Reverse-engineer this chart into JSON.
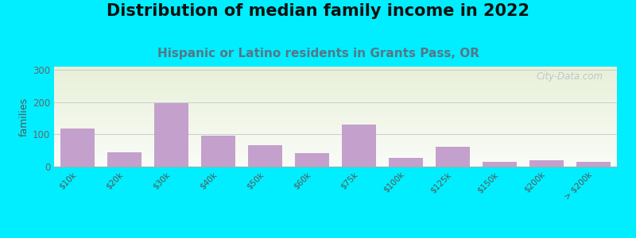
{
  "title": "Distribution of median family income in 2022",
  "subtitle": "Hispanic or Latino residents in Grants Pass, OR",
  "categories": [
    "$10k",
    "$20k",
    "$30k",
    "$40k",
    "$50k",
    "$60k",
    "$75k",
    "$100k",
    "$125k",
    "$150k",
    "$200k",
    "> $200k"
  ],
  "values": [
    118,
    45,
    197,
    97,
    67,
    42,
    130,
    28,
    62,
    15,
    20,
    15
  ],
  "bar_color": "#c4a0cc",
  "background_outer": "#00eeff",
  "background_plot_top_left": "#e8f0d8",
  "background_plot_bottom_right": "#f8faf4",
  "ylabel": "families",
  "ylim": [
    0,
    310
  ],
  "yticks": [
    0,
    100,
    200,
    300
  ],
  "title_fontsize": 15,
  "subtitle_fontsize": 11,
  "subtitle_color": "#557788",
  "watermark": "City-Data.com",
  "watermark_color": "#b0b8c0"
}
